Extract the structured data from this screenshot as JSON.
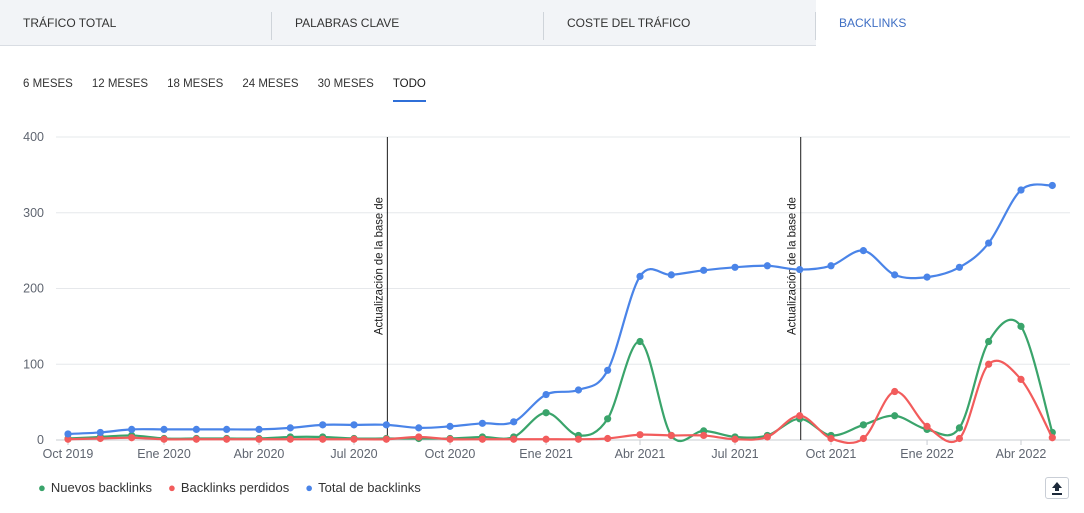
{
  "tabs": [
    {
      "label": "TRÁFICO TOTAL",
      "active": false
    },
    {
      "label": "PALABRAS CLAVE",
      "active": false
    },
    {
      "label": "COSTE DEL TRÁFICO",
      "active": false
    },
    {
      "label": "BACKLINKS",
      "active": true
    }
  ],
  "periods": [
    {
      "label": "6 MESES",
      "active": false
    },
    {
      "label": "12 MESES",
      "active": false
    },
    {
      "label": "18 MESES",
      "active": false
    },
    {
      "label": "24 MESES",
      "active": false
    },
    {
      "label": "30 MESES",
      "active": false
    },
    {
      "label": "TODO",
      "active": true
    }
  ],
  "chart_data": {
    "type": "line",
    "ylim": [
      0,
      400
    ],
    "y_ticks": [
      0,
      100,
      200,
      300,
      400
    ],
    "x_ticks": [
      {
        "label": "Oct 2019",
        "date": "2019-10-01"
      },
      {
        "label": "Ene 2020",
        "date": "2020-01-01"
      },
      {
        "label": "Abr 2020",
        "date": "2020-04-01"
      },
      {
        "label": "Jul 2020",
        "date": "2020-07-01"
      },
      {
        "label": "Oct 2020",
        "date": "2020-10-01"
      },
      {
        "label": "Ene 2021",
        "date": "2021-01-01"
      },
      {
        "label": "Abr 2021",
        "date": "2021-04-01"
      },
      {
        "label": "Jul 2021",
        "date": "2021-07-01"
      },
      {
        "label": "Oct 2021",
        "date": "2021-10-01"
      },
      {
        "label": "Ene 2022",
        "date": "2022-01-01"
      },
      {
        "label": "Abr 2022",
        "date": "2022-04-01"
      }
    ],
    "x": [
      "2019-10-01",
      "2019-11-01",
      "2019-12-01",
      "2020-01-01",
      "2020-02-01",
      "2020-03-01",
      "2020-04-01",
      "2020-05-01",
      "2020-06-01",
      "2020-07-01",
      "2020-08-01",
      "2020-09-01",
      "2020-10-01",
      "2020-11-01",
      "2020-12-01",
      "2021-01-01",
      "2021-02-01",
      "2021-03-01",
      "2021-04-01",
      "2021-05-01",
      "2021-06-01",
      "2021-07-01",
      "2021-08-01",
      "2021-09-01",
      "2021-10-01",
      "2021-11-01",
      "2021-12-01",
      "2022-01-01",
      "2022-02-01",
      "2022-03-01",
      "2022-04-01",
      "2022-05-01"
    ],
    "series": [
      {
        "name": "Nuevos backlinks",
        "color": "#3aa46b",
        "values": [
          2,
          4,
          6,
          2,
          2,
          2,
          2,
          4,
          4,
          2,
          2,
          2,
          2,
          4,
          4,
          36,
          6,
          28,
          130,
          6,
          12,
          4,
          6,
          28,
          6,
          20,
          32,
          14,
          16,
          130,
          150,
          10
        ]
      },
      {
        "name": "Backlinks perdidos",
        "color": "#f25c5c",
        "values": [
          1,
          2,
          3,
          1,
          1,
          1,
          1,
          1,
          1,
          1,
          1,
          4,
          1,
          1,
          1,
          1,
          1,
          2,
          7,
          6,
          6,
          1,
          4,
          32,
          2,
          2,
          64,
          18,
          2,
          100,
          80,
          3
        ]
      },
      {
        "name": "Total de backlinks",
        "color": "#4a84e8",
        "values": [
          8,
          10,
          14,
          14,
          14,
          14,
          14,
          16,
          20,
          20,
          20,
          16,
          18,
          22,
          24,
          60,
          66,
          92,
          216,
          218,
          224,
          228,
          230,
          225,
          230,
          250,
          218,
          215,
          228,
          260,
          330,
          336
        ]
      }
    ],
    "annotations": [
      {
        "date": "2020-08-01",
        "text": "Actualización de la base de"
      },
      {
        "date": "2021-09-01",
        "text": "Actualización de la base de"
      }
    ],
    "legend": "bottom-left",
    "grid": true
  },
  "legend_items": [
    {
      "label": "Nuevos backlinks",
      "color": "#3aa46b"
    },
    {
      "label": "Backlinks perdidos",
      "color": "#f25c5c"
    },
    {
      "label": "Total de backlinks",
      "color": "#4a84e8"
    }
  ],
  "export_icon": "export-icon"
}
